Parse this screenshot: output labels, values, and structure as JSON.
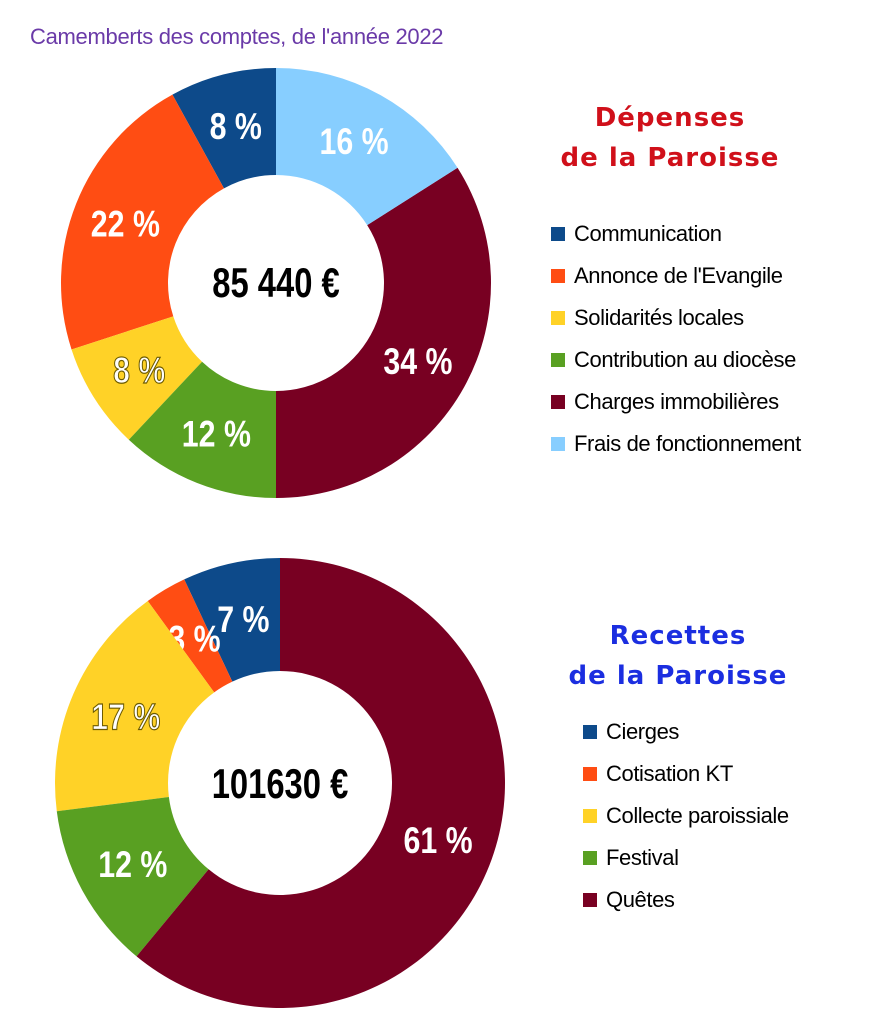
{
  "page": {
    "title": "Camemberts des comptes, de l'année 2022"
  },
  "colors": {
    "communication": "#0d4a8a",
    "annonce": "#ff4d13",
    "solidarites": "#ffd227",
    "contribution": "#59a022",
    "charges": "#780022",
    "frais": "#87ceff",
    "depenses_title": "#d0101a",
    "recettes_title": "#1b2ee0"
  },
  "chart_data": [
    {
      "type": "pie",
      "donut": true,
      "title_line1": "Dépenses",
      "title_line2": "de la Paroisse",
      "center_label": "85 440 €",
      "slices": [
        {
          "name": "Communication",
          "value": 8,
          "label": "8 %",
          "color": "#0d4a8a",
          "label_color": "#ffffff"
        },
        {
          "name": "Annonce de l'Evangile",
          "value": 22,
          "label": "22 %",
          "color": "#ff4d13",
          "label_color": "#ffffff"
        },
        {
          "name": "Solidarités locales",
          "value": 8,
          "label": "8 %",
          "color": "#ffd227",
          "label_color": "#ffffff"
        },
        {
          "name": "Contribution au diocèse",
          "value": 12,
          "label": "12 %",
          "color": "#59a022",
          "label_color": "#ffffff"
        },
        {
          "name": "Charges immobilières",
          "value": 34,
          "label": "34 %",
          "color": "#780022",
          "label_color": "#ffffff"
        },
        {
          "name": "Frais de fonctionnement",
          "value": 16,
          "label": "16 %",
          "color": "#87ceff",
          "label_color": "#ffffff"
        }
      ],
      "draw_order": [
        0,
        1,
        2,
        3,
        4,
        5
      ],
      "clockwise": false
    },
    {
      "type": "pie",
      "donut": true,
      "title_line1": "Recettes",
      "title_line2": "de la Paroisse",
      "center_label": "101630 €",
      "slices": [
        {
          "name": "Cierges",
          "value": 7,
          "label": "7 %",
          "color": "#0d4a8a",
          "label_color": "#ffffff"
        },
        {
          "name": "Cotisation KT",
          "value": 3,
          "label": "3 %",
          "color": "#ff4d13",
          "label_color": "#ffffff"
        },
        {
          "name": "Collecte paroissiale",
          "value": 17,
          "label": "17 %",
          "color": "#ffd227",
          "label_color": "#ffffff"
        },
        {
          "name": "Festival",
          "value": 12,
          "label": "12 %",
          "color": "#59a022",
          "label_color": "#ffffff"
        },
        {
          "name": "Quêtes",
          "value": 61,
          "label": "61 %",
          "color": "#780022",
          "label_color": "#ffffff"
        }
      ],
      "clockwise": false
    }
  ]
}
